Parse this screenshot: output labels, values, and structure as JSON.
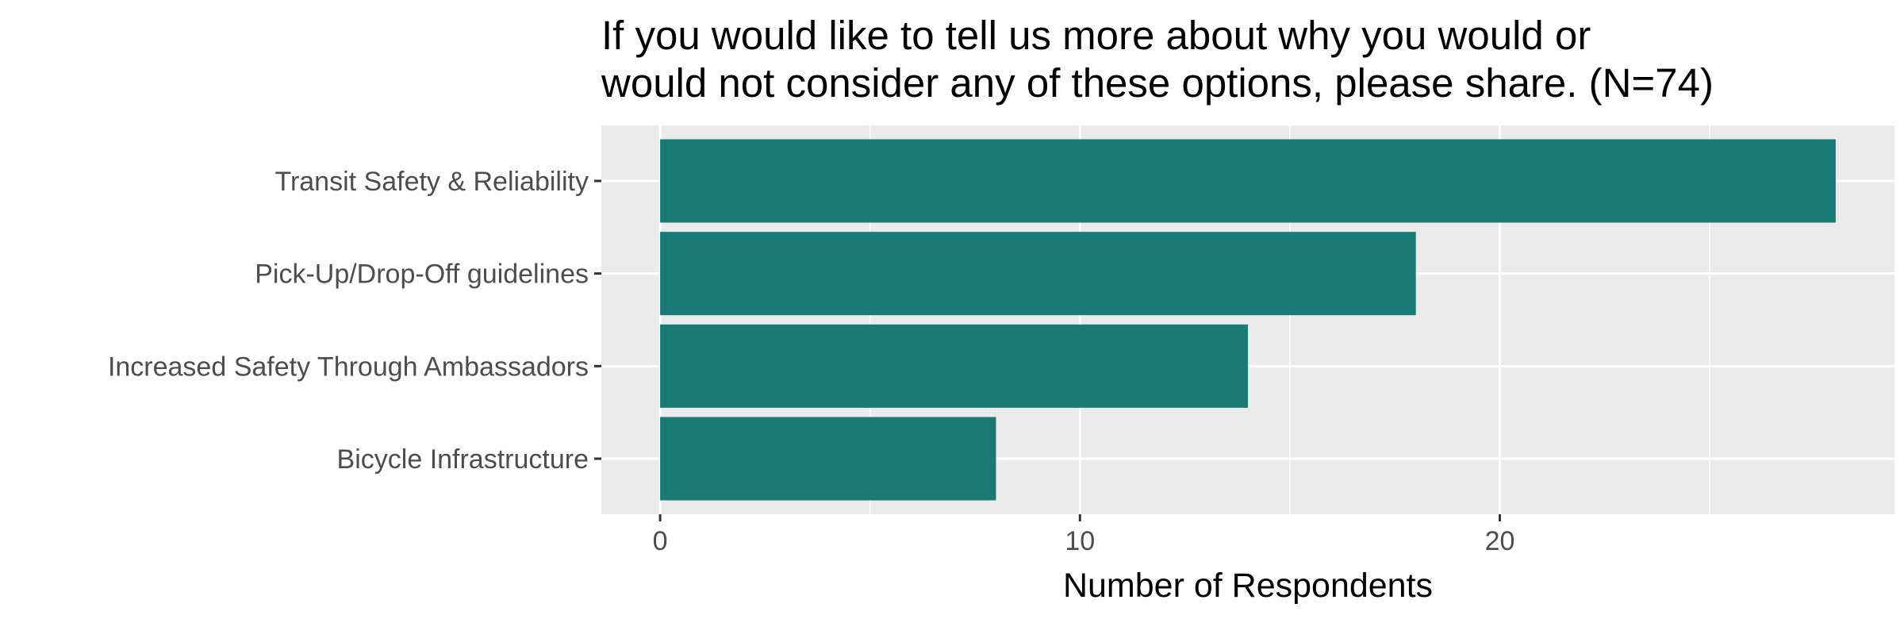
{
  "chart_data": {
    "type": "bar",
    "orientation": "horizontal",
    "title_lines": [
      "If you would like to tell us more about why you would or",
      "would not consider any of these options, please share. (N=74)"
    ],
    "categories": [
      "Transit Safety & Reliability",
      "Pick-Up/Drop-Off guidelines",
      "Increased Safety Through Ambassadors",
      "Bicycle Infrastructure"
    ],
    "values": [
      28,
      18,
      14,
      8
    ],
    "xlabel": "Number of Respondents",
    "ylabel": "",
    "xlim": [
      -1.4,
      29.4
    ],
    "x_ticks": [
      0,
      10,
      20
    ],
    "x_minor_ticks": [
      5,
      15,
      25
    ],
    "grid": true,
    "legend": "none",
    "bar_color": "#1a7a76",
    "panel_color": "#ebebeb",
    "grid_color": "#ffffff"
  }
}
